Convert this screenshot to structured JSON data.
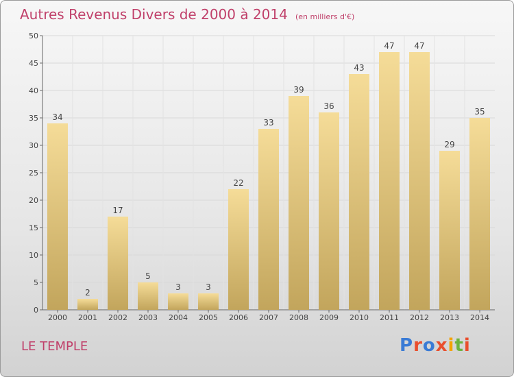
{
  "chart_data": {
    "type": "bar",
    "title": "Autres Revenus Divers de 2000 à 2014",
    "subtitle": "(en milliers d'€)",
    "categories": [
      "2000",
      "2001",
      "2002",
      "2003",
      "2004",
      "2005",
      "2006",
      "2007",
      "2008",
      "2009",
      "2010",
      "2011",
      "2012",
      "2013",
      "2014"
    ],
    "values": [
      34,
      2,
      17,
      5,
      3,
      3,
      22,
      33,
      39,
      36,
      43,
      47,
      47,
      29,
      35
    ],
    "ylim": [
      0,
      50
    ],
    "yticks": [
      0,
      5,
      10,
      15,
      20,
      25,
      30,
      35,
      40,
      45,
      50
    ],
    "grid": true,
    "xlabel": "",
    "ylabel": "",
    "colors": {
      "bar_light": "#f5dc98",
      "bar_dark": "#c2a55c",
      "title": "#c0406a"
    }
  },
  "footer": {
    "town": "LE TEMPLE",
    "logo_letters": [
      {
        "ch": "P",
        "color": "#3a7bd5"
      },
      {
        "ch": "r",
        "color": "#e94e2d"
      },
      {
        "ch": "o",
        "color": "#3a7bd5"
      },
      {
        "ch": "x",
        "color": "#e94e2d"
      },
      {
        "ch": "i",
        "color": "#f4a300"
      },
      {
        "ch": "t",
        "color": "#6cb33f"
      },
      {
        "ch": "i",
        "color": "#e94e2d"
      }
    ]
  }
}
